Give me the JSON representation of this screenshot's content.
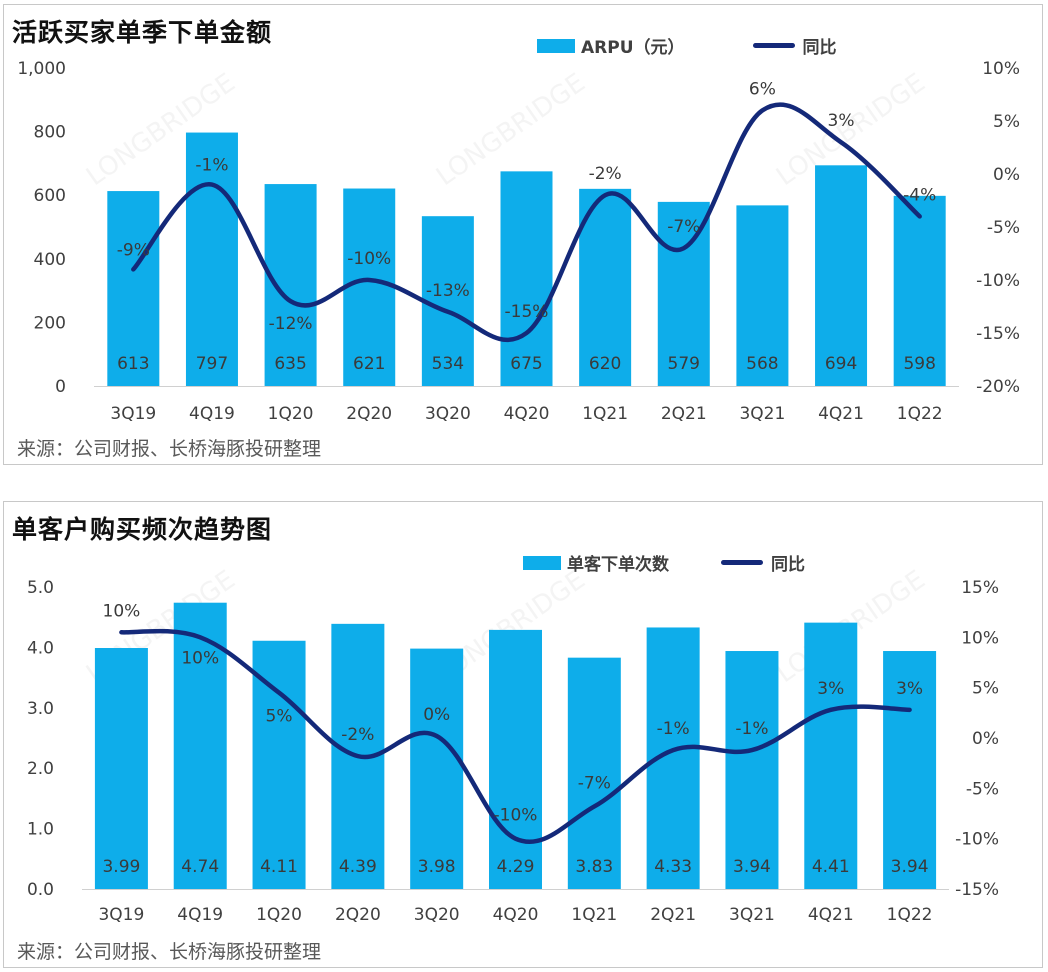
{
  "colors": {
    "bar": "#0eadea",
    "line": "#142979",
    "axis_text": "#404040",
    "bar_label": "#3a3a3a"
  },
  "panels": [
    {
      "title": "活跃买家单季下单金额",
      "source": "来源：公司财报、长桥海豚投研整理",
      "legend": {
        "bar": "ARPU（元）",
        "line": "同比"
      }
    },
    {
      "title": "单客户购买频次趋势图",
      "source": "来源：公司财报、长桥海豚投研整理",
      "legend": {
        "bar": "单客下单次数",
        "line": "同比"
      }
    }
  ],
  "watermark": {
    "logo_text": "LONGBRIDGE"
  },
  "chart_data": [
    {
      "type": "bar",
      "title": "活跃买家单季下单金额",
      "categories": [
        "3Q19",
        "4Q19",
        "1Q20",
        "2Q20",
        "3Q20",
        "4Q20",
        "1Q21",
        "2Q21",
        "3Q21",
        "4Q21",
        "1Q22"
      ],
      "series": [
        {
          "name": "ARPU（元）",
          "type": "bar",
          "axis": "left",
          "values": [
            613,
            797,
            635,
            621,
            534,
            675,
            620,
            579,
            568,
            694,
            598
          ],
          "labels": [
            "613",
            "797",
            "635",
            "621",
            "534",
            "675",
            "620",
            "579",
            "568",
            "694",
            "598"
          ]
        },
        {
          "name": "同比",
          "type": "line",
          "axis": "right",
          "values": [
            -9,
            -1,
            -12,
            -10,
            -13,
            -15,
            -2,
            -7,
            6,
            3,
            -4
          ],
          "labels": [
            "-9%",
            "-1%",
            "-12%",
            "-10%",
            "-13%",
            "-15%",
            "-2%",
            "-7%",
            "6%",
            "3%",
            "-4%"
          ]
        }
      ],
      "left_axis": {
        "min": 0,
        "max": 1000,
        "ticks": [
          "0",
          "200",
          "400",
          "600",
          "800",
          "1,000"
        ]
      },
      "right_axis": {
        "min": -20,
        "max": 10,
        "ticks": [
          "-20%",
          "-15%",
          "-10%",
          "-5%",
          "0%",
          "5%",
          "10%"
        ]
      }
    },
    {
      "type": "bar",
      "title": "单客户购买频次趋势图",
      "categories": [
        "3Q19",
        "4Q19",
        "1Q20",
        "2Q20",
        "3Q20",
        "4Q20",
        "1Q21",
        "2Q21",
        "3Q21",
        "4Q21",
        "1Q22"
      ],
      "series": [
        {
          "name": "单客下单次数",
          "type": "bar",
          "axis": "left",
          "values": [
            3.99,
            4.74,
            4.11,
            4.39,
            3.98,
            4.29,
            3.83,
            4.33,
            3.94,
            4.41,
            3.94
          ],
          "labels": [
            "3.99",
            "4.74",
            "4.11",
            "4.39",
            "3.98",
            "4.29",
            "3.83",
            "4.33",
            "3.94",
            "4.41",
            "3.94"
          ]
        },
        {
          "name": "同比",
          "type": "line",
          "axis": "right",
          "values": [
            10.5,
            10,
            4.5,
            -1.8,
            0.2,
            -10,
            -6.8,
            -1.2,
            -1.2,
            2.8,
            2.8
          ],
          "labels": [
            "10%",
            "10%",
            "5%",
            "-2%",
            "0%",
            "-10%",
            "-7%",
            "-1%",
            "-1%",
            "3%",
            "3%"
          ]
        }
      ],
      "left_axis": {
        "min": 0,
        "max": 5,
        "ticks": [
          "0.0",
          "1.0",
          "2.0",
          "3.0",
          "4.0",
          "5.0"
        ]
      },
      "right_axis": {
        "min": -15,
        "max": 15,
        "ticks": [
          "-15%",
          "-10%",
          "-5%",
          "0%",
          "5%",
          "10%",
          "15%"
        ]
      }
    }
  ]
}
